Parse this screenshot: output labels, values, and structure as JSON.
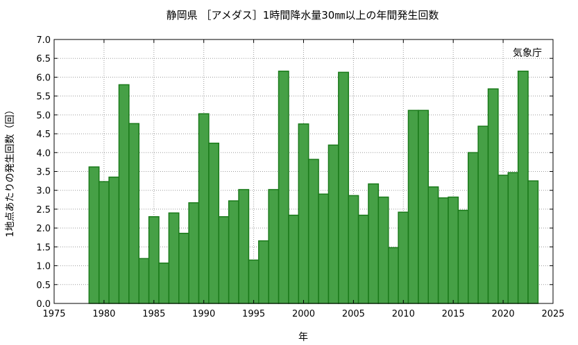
{
  "chart_data": {
    "type": "bar",
    "title": "静岡県 ［アメダス］1時間降水量30㎜以上の年間発生回数",
    "xlabel": "年",
    "ylabel": "1地点あたりの発生回数（回）",
    "credit": "気象庁",
    "xlim": [
      1975,
      2025
    ],
    "ylim": [
      0,
      7.0
    ],
    "x_ticks": [
      1975,
      1980,
      1985,
      1990,
      1995,
      2000,
      2005,
      2010,
      2015,
      2020,
      2025
    ],
    "y_ticks": [
      0.0,
      0.5,
      1.0,
      1.5,
      2.0,
      2.5,
      3.0,
      3.5,
      4.0,
      4.5,
      5.0,
      5.5,
      6.0,
      6.5,
      7.0
    ],
    "grid": true,
    "colors": {
      "bar_fill": "#46a046",
      "bar_stroke": "#1a7a1a"
    },
    "x": [
      1979,
      1980,
      1981,
      1982,
      1983,
      1984,
      1985,
      1986,
      1987,
      1988,
      1989,
      1990,
      1991,
      1992,
      1993,
      1994,
      1995,
      1996,
      1997,
      1998,
      1999,
      2000,
      2001,
      2002,
      2003,
      2004,
      2005,
      2006,
      2007,
      2008,
      2009,
      2010,
      2011,
      2012,
      2013,
      2014,
      2015,
      2016,
      2017,
      2018,
      2019,
      2020,
      2021,
      2022,
      2023
    ],
    "values": [
      3.62,
      3.23,
      3.35,
      5.8,
      4.77,
      1.19,
      2.3,
      1.07,
      2.4,
      1.86,
      2.67,
      5.03,
      4.25,
      2.3,
      2.72,
      3.02,
      1.15,
      1.66,
      3.02,
      6.16,
      2.34,
      4.76,
      3.82,
      2.9,
      4.2,
      6.13,
      2.86,
      2.34,
      3.17,
      2.82,
      1.48,
      2.42,
      5.12,
      5.12,
      3.09,
      2.8,
      2.82,
      2.47,
      4.0,
      4.7,
      5.69,
      3.4,
      3.47,
      6.16,
      3.25
    ]
  }
}
